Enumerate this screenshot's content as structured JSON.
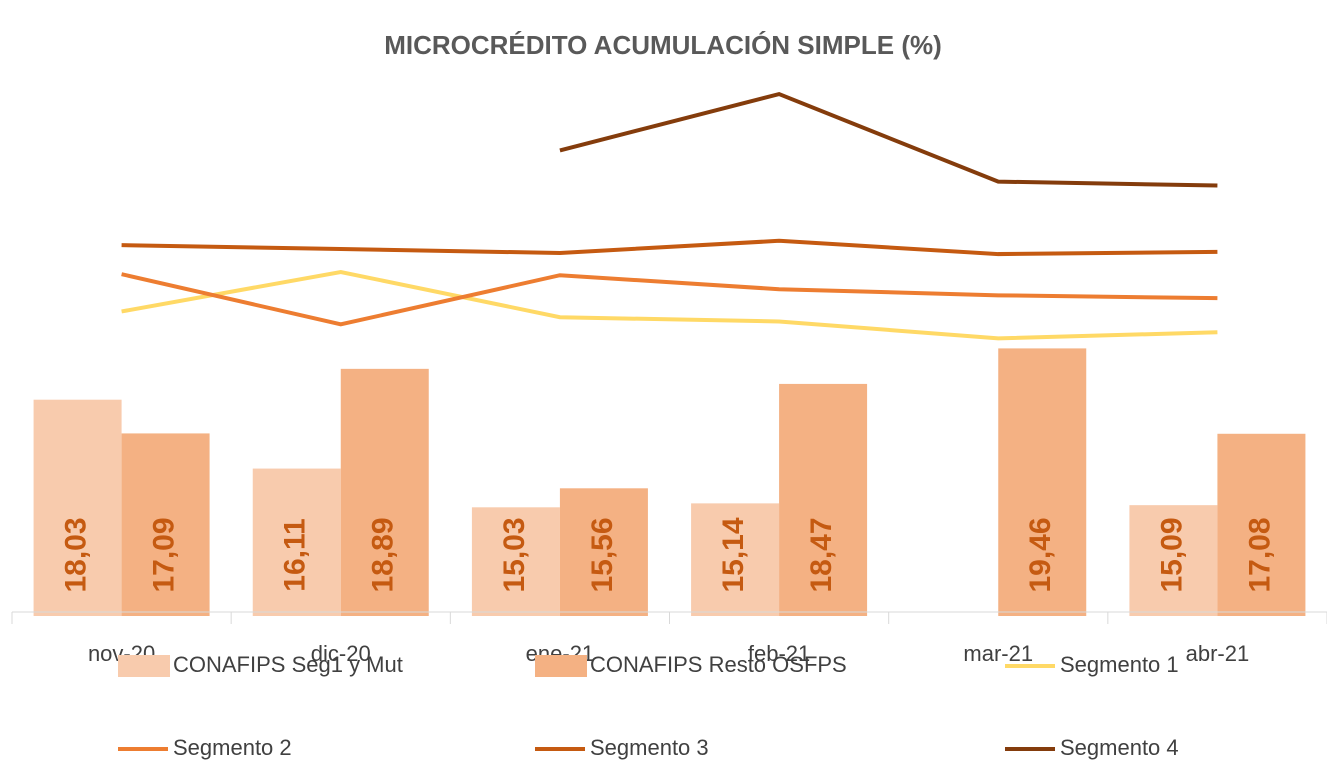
{
  "chart_data": {
    "type": "bar",
    "title": "MICROCRÉDITO ACUMULACIÓN SIMPLE (%)",
    "categories": [
      "nov-20",
      "dic-20",
      "ene-21",
      "feb-21",
      "mar-21",
      "abr-21"
    ],
    "ylim": [
      12,
      27.5
    ],
    "series": [
      {
        "name": "CONAFIPS Seg1 y Mut",
        "type": "bar",
        "color": "#f8cbad",
        "values": [
          18.03,
          16.11,
          15.03,
          15.14,
          null,
          15.09
        ],
        "value_labels": [
          "18,03",
          "16,11",
          "15,03",
          "15,14",
          null,
          "15,09"
        ]
      },
      {
        "name": "CONAFIPS Resto OSFPS",
        "type": "bar",
        "color": "#f4b183",
        "values": [
          17.09,
          18.89,
          15.56,
          18.47,
          19.46,
          17.08
        ],
        "value_labels": [
          "17,09",
          "18,89",
          "15,56",
          "18,47",
          "19,46",
          "17,08"
        ]
      },
      {
        "name": "Segmento 1",
        "type": "line",
        "color": "#ffd966",
        "values": [
          20.49,
          21.59,
          20.33,
          20.21,
          19.74,
          19.91
        ]
      },
      {
        "name": "Segmento 2",
        "type": "line",
        "color": "#ed7d31",
        "values": [
          21.53,
          20.13,
          21.5,
          21.11,
          20.94,
          20.86
        ]
      },
      {
        "name": "Segmento 3",
        "type": "line",
        "color": "#c55a11",
        "values": [
          22.34,
          22.23,
          22.12,
          22.46,
          22.09,
          22.15
        ]
      },
      {
        "name": "Segmento 4",
        "type": "line",
        "color": "#843c0c",
        "values": [
          null,
          null,
          24.98,
          26.55,
          24.11,
          24.0
        ]
      }
    ],
    "value_label_color": "#c55a11"
  }
}
